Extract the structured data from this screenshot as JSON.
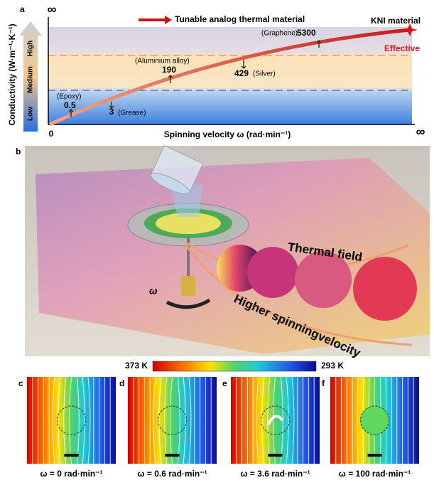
{
  "panel_a": {
    "label": "a",
    "title": "Tunable analog thermal material",
    "end_label": "KNI material",
    "effective": "Effective",
    "y_label": "Conductivity (W·m⁻¹·K⁻¹)",
    "levels": [
      "High",
      "Medium",
      "Low"
    ],
    "x_label": "Spinning velocity ω (rad·min⁻¹)",
    "origin": "0",
    "y_max": "∞",
    "x_max": "∞",
    "materials": [
      {
        "name": "(Epoxy)",
        "value": 0.5
      },
      {
        "name": "(Grease)",
        "value": 3
      },
      {
        "name": "(Aluminium alloy)",
        "value": 190
      },
      {
        "name": "(Silver)",
        "value": 429
      },
      {
        "name": "(Graphene)",
        "value": 5300
      }
    ]
  },
  "panel_b": {
    "label": "b",
    "omega": "ω",
    "field": "Thermal  field",
    "velocity": "Higher spinningvelocity"
  },
  "colorbar": {
    "left": "373 K",
    "right": "293 K"
  },
  "panels": [
    {
      "label": "c",
      "caption": "ω = 0 rad·min⁻¹"
    },
    {
      "label": "d",
      "caption": "ω = 0.6 rad·min⁻¹"
    },
    {
      "label": "e",
      "caption": "ω = 3.6 rad·min⁻¹"
    },
    {
      "label": "f",
      "caption": "ω = 100 rad·min⁻¹"
    }
  ]
}
